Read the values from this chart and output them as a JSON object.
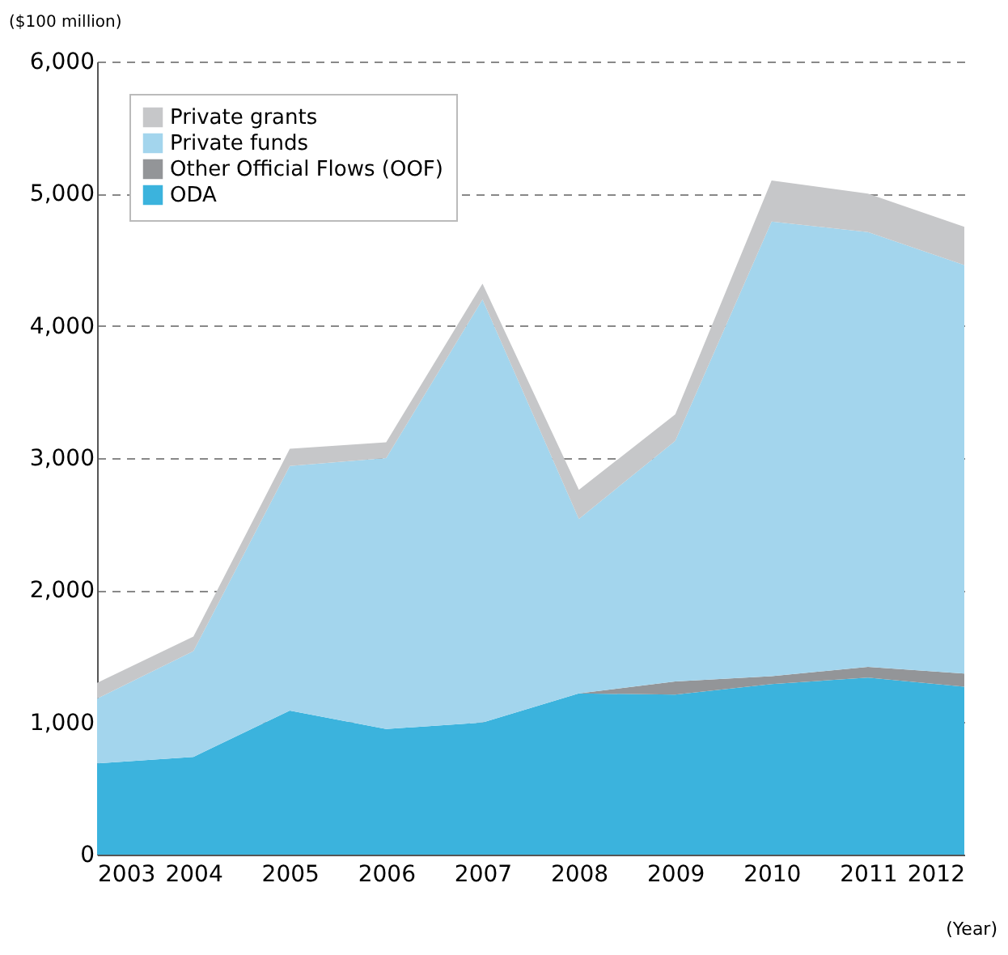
{
  "chart_data": {
    "type": "area",
    "stacked": true,
    "ylabel": "($100 million)",
    "xlabel": "(Year)",
    "x": [
      2003,
      2004,
      2005,
      2006,
      2007,
      2008,
      2009,
      2010,
      2011,
      2012
    ],
    "xlim": [
      2003,
      2012
    ],
    "xticks": [
      2003,
      2004,
      2005,
      2006,
      2007,
      2008,
      2009,
      2010,
      2011,
      2012
    ],
    "ylim": [
      0,
      6000
    ],
    "yticks": [
      0,
      {
        "value": 1000,
        "label": "1,000"
      },
      {
        "value": 2000,
        "label": "2,000"
      },
      {
        "value": 3000,
        "label": "3,000"
      },
      {
        "value": 4000,
        "label": "4,000"
      },
      {
        "value": 5000,
        "label": "5,000"
      },
      {
        "value": 6000,
        "label": "6,000"
      }
    ],
    "grid": "y",
    "legend": "top left",
    "series": [
      {
        "name": "ODA",
        "color": "#3bb3dd",
        "values": [
          690,
          740,
          1090,
          950,
          1000,
          1220,
          1210,
          1290,
          1340,
          1270
        ]
      },
      {
        "name": "Other Official Flows (OOF)",
        "color": "#939598",
        "values": [
          0,
          0,
          0,
          0,
          0,
          0,
          100,
          60,
          80,
          100
        ]
      },
      {
        "name": "Private funds",
        "color": "#a3d5ed",
        "values": [
          490,
          800,
          1850,
          2050,
          3200,
          1320,
          1820,
          3440,
          3290,
          3090
        ]
      },
      {
        "name": "Private grants",
        "color": "#c6c7c9",
        "values": [
          120,
          110,
          130,
          120,
          120,
          220,
          200,
          310,
          290,
          290
        ]
      }
    ]
  }
}
